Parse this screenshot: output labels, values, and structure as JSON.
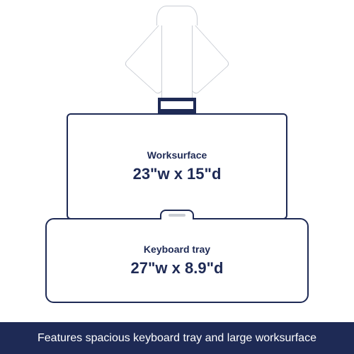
{
  "colors": {
    "outline": "#1e2a55",
    "light_outline": "#c9cdd4",
    "footer_bg": "#1e2a55",
    "footer_text": "#ffffff",
    "text": "#1e2a55",
    "background": "#ffffff"
  },
  "worksurface": {
    "title": "Worksurface",
    "dimensions": "23\"w x 15\"d",
    "width_in": 23,
    "depth_in": 15,
    "title_fontsize": 14,
    "dim_fontsize": 22
  },
  "keyboard_tray": {
    "title": "Keyboard tray",
    "dimensions": "27\"w x 8.9\"d",
    "width_in": 27,
    "depth_in": 8.9,
    "title_fontsize": 14,
    "dim_fontsize": 22
  },
  "footer": {
    "text": "Features spacious keyboard tray and large worksurface",
    "fontsize": 16
  }
}
